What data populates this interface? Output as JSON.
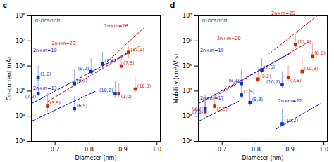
{
  "chart_data": [
    {
      "type": "scatter",
      "title": "c",
      "x_label": "Diameter (nm)",
      "y_label": "On-current (nA)",
      "log": "y",
      "xlim": [
        0.63,
        1.01
      ],
      "xticks": [
        0.7,
        0.8,
        0.9,
        {
          "value": 1,
          "label": "1.0"
        }
      ],
      "ylim": [
        1000,
        100000000
      ],
      "yticks": [
        {
          "value": 1000,
          "label": "10³"
        },
        {
          "value": 10000,
          "label": "10⁴"
        },
        {
          "value": 100000,
          "label": "10⁵"
        },
        {
          "value": 1000000,
          "label": "10⁶"
        },
        {
          "value": 10000000,
          "label": "10⁷"
        },
        {
          "value": 100000000,
          "label": "10⁸"
        }
      ],
      "annotations": [
        {
          "text": "n-branch",
          "color": "#007777"
        }
      ],
      "series": [
        {
          "type": "line",
          "name": "2n+m=26",
          "color": "#cc0000",
          "line_style": "dashed",
          "x": [
            0.84,
            0.96
          ],
          "values": [
            1000000,
            31622776.6017
          ],
          "label_at": [
            0.845,
            35481338.9234
          ]
        },
        {
          "type": "line",
          "name": "2n+m=23",
          "color": "#cc0000",
          "line_style": "dashed",
          "x": [
            0.68,
            0.95
          ],
          "values": [
            39810.7171,
            6309573.4448
          ],
          "label_at": [
            0.69,
            7079457.8438
          ]
        },
        {
          "type": "line",
          "name": "2n+m=19",
          "color": "#0000cc",
          "line_style": "dashed",
          "x": [
            0.63,
            0.91
          ],
          "values": [
            31622.7766,
            3162277.6602
          ],
          "label_at": [
            0.635,
            3548133.8923
          ]
        },
        {
          "type": "line",
          "name": "2n+m=13",
          "color": "#0000cc",
          "line_style": "dashed",
          "x": [
            0.63,
            0.82
          ],
          "values": [
            6309.5734,
            100000
          ],
          "label_at": [
            0.635,
            112201.8454
          ]
        },
        {
          "type": "scatter",
          "color": "#cc2200",
          "marker": "square",
          "x": [
            0.895,
            0.916,
            0.936,
            0.678,
            0.888
          ],
          "values": [
            1000000,
            3500000,
            120000,
            25000,
            80000
          ],
          "err_high": [
            2500000,
            6000000,
            350000,
            80000,
            200000
          ],
          "err_low": [
            700000,
            2000000,
            80000,
            15000,
            55000
          ],
          "labels": [
            "(7,6)",
            "(11,1)",
            "(10,3)",
            "(5,5)",
            "(1,0)"
          ]
        },
        {
          "type": "scatter",
          "color": "#0033cc",
          "marker": "square",
          "x": [
            0.806,
            0.84,
            0.757,
            0.65,
            0.757,
            0.877,
            0.65
          ],
          "values": [
            600000,
            1200000,
            200000,
            80000,
            20000,
            80000,
            350000
          ],
          "err_high": [
            2000000,
            3500000,
            700000,
            300000,
            60000,
            250000,
            1000000
          ],
          "err_low": [
            450000,
            800000,
            150000,
            60000,
            14000,
            55000,
            250000
          ],
          "labels": [
            "(9,2)",
            "(8,4)",
            "(9,7)",
            "(7,2)",
            "(6,5)",
            "(10,2)",
            "(1,6)"
          ]
        }
      ]
    },
    {
      "type": "scatter",
      "title": "d",
      "x_label": "Diameter (nm)",
      "y_label": "Mobility (cm²/V·s)",
      "log": "y",
      "xlim": [
        0.63,
        1.01
      ],
      "xticks": [
        0.7,
        0.8,
        0.9,
        {
          "value": 1,
          "label": "1.0"
        }
      ],
      "ylim": [
        100,
        10000000
      ],
      "yticks": [
        {
          "value": 100,
          "label": "10²"
        },
        {
          "value": 1000,
          "label": "10³"
        },
        {
          "value": 10000,
          "label": "10⁴"
        },
        {
          "value": 100000,
          "label": "10⁵"
        },
        {
          "value": 1000000,
          "label": "10⁶"
        },
        {
          "value": 10000000,
          "label": "10⁷"
        }
      ],
      "annotations": [
        {
          "text": "n-branch",
          "color": "#007777"
        }
      ],
      "series": [
        {
          "type": "line",
          "name": "2n+m=25",
          "color": "#cc0000",
          "line_style": "dashed",
          "x": [
            0.84,
            0.98
          ],
          "values": [
            316227.766,
            10000000
          ],
          "label_at": [
            0.845,
            11220184.543
          ]
        },
        {
          "type": "line",
          "name": "2n+m=20",
          "color": "#cc0000",
          "line_style": "dashed",
          "x": [
            0.68,
            0.96
          ],
          "values": [
            6309.5734,
            1000000
          ],
          "label_at": [
            0.685,
            1122018.4543
          ]
        },
        {
          "type": "line",
          "name": "2n+m=19",
          "color": "#0000cc",
          "line_style": "dashed",
          "x": [
            0.63,
            0.9
          ],
          "values": [
            3162.2777,
            316227.766
          ],
          "label_at": [
            0.635,
            354813.3892
          ]
        },
        {
          "type": "line",
          "name": "2n+m=17",
          "color": "#0000cc",
          "line_style": "dashed",
          "x": [
            0.63,
            0.75
          ],
          "values": [
            630.9573,
            3981.0717
          ],
          "label_at": [
            0.635,
            4466.8359
          ]
        },
        {
          "type": "line",
          "name": "2n+m=22",
          "color": "#0000cc",
          "line_style": "dashed",
          "x": [
            0.86,
            0.99
          ],
          "values": [
            316.2278,
            3162.2777
          ],
          "label_at": [
            0.865,
            3548.1339
          ]
        },
        {
          "type": "scatter",
          "color": "#cc2200",
          "marker": "square",
          "x": [
            0.806,
            0.966,
            0.916,
            0.936,
            0.895,
            0.678,
            0.65
          ],
          "values": [
            30000,
            250000,
            700000,
            60000,
            35000,
            2500,
            1500
          ],
          "err_high": [
            90000,
            800000,
            1800000,
            200000,
            100000,
            8000,
            5000
          ],
          "err_low": [
            22000,
            180000,
            500000,
            45000,
            25000,
            1800,
            1100
          ],
          "labels": [
            "(9,2)",
            "(8,6)",
            "(11,1)",
            "(10,3)",
            "(7,6)",
            "(5,5)",
            "(3,2)"
          ]
        },
        {
          "type": "scatter",
          "color": "#0033cc",
          "marker": "square",
          "x": [
            0.817,
            0.757,
            0.757,
            0.877,
            0.782,
            0.877,
            0.65
          ],
          "values": [
            70000,
            7000,
            20000,
            18000,
            3500,
            500,
            2000
          ],
          "err_high": [
            200000,
            25000,
            70000,
            60000,
            12000,
            1800,
            7000
          ],
          "err_low": [
            50000,
            5000,
            15000,
            13000,
            2500,
            380,
            1500
          ],
          "labels": [
            "(7,5)",
            "(1,5)",
            "(9,1)",
            "(10,2)",
            "(8,3)",
            "(10,2)",
            "(7,0)"
          ]
        }
      ]
    }
  ]
}
